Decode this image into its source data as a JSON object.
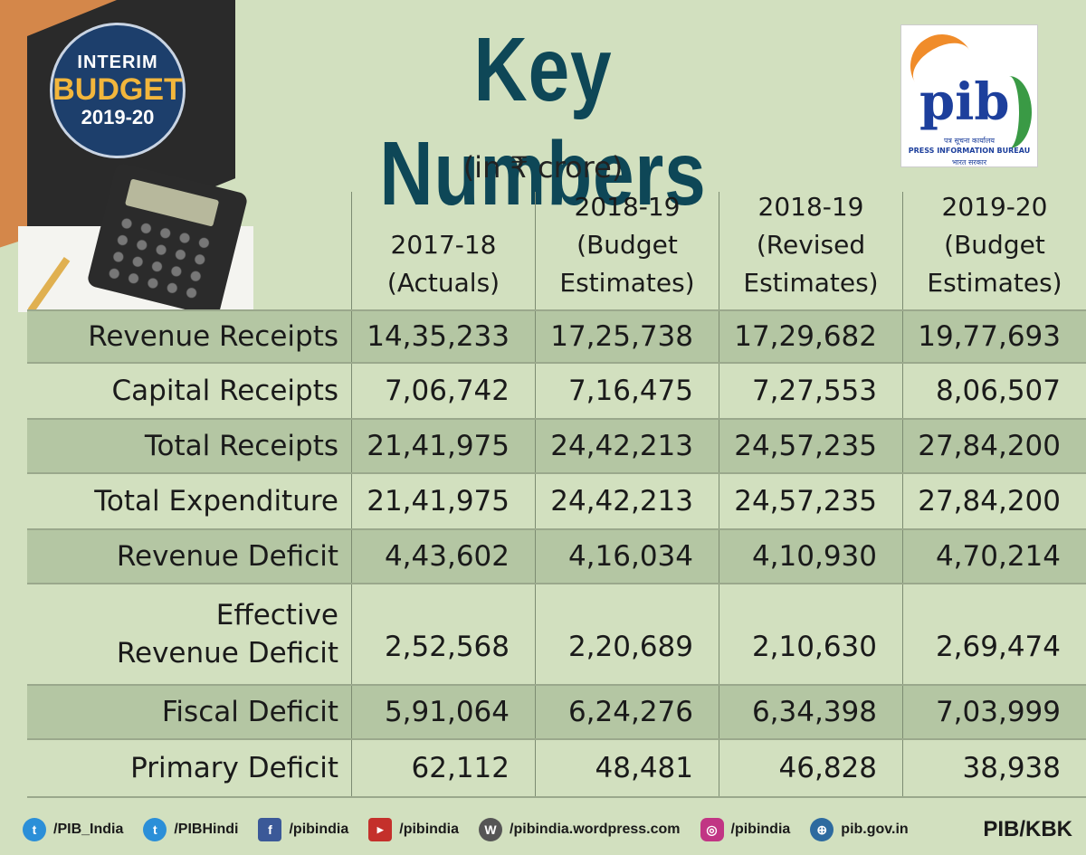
{
  "badge": {
    "line1": "INTERIM",
    "line2": "BUDGET",
    "line3": "2019-20"
  },
  "title": "Key Numbers",
  "unit": "(in ₹ crore)",
  "logo": {
    "name": "pib",
    "line1": "पत्र सूचना कार्यालय",
    "line2": "PRESS INFORMATION BUREAU",
    "line3": "भारत सरकार"
  },
  "columns": [
    {
      "line1": "",
      "line2": "2017-18",
      "line3": "(Actuals)"
    },
    {
      "line1": "2018-19",
      "line2": "(Budget",
      "line3": "Estimates)"
    },
    {
      "line1": "2018-19",
      "line2": "(Revised",
      "line3": "Estimates)"
    },
    {
      "line1": "2019-20",
      "line2": "(Budget",
      "line3": "Estimates)"
    }
  ],
  "rows": [
    {
      "label": "Revenue Receipts",
      "values": [
        "14,35,233",
        "17,25,738",
        "17,29,682",
        "19,77,693"
      ]
    },
    {
      "label": "Capital Receipts",
      "values": [
        "7,06,742",
        "7,16,475",
        "7,27,553",
        "8,06,507"
      ]
    },
    {
      "label": "Total Receipts",
      "values": [
        "21,41,975",
        "24,42,213",
        "24,57,235",
        "27,84,200"
      ]
    },
    {
      "label": "Total Expenditure",
      "values": [
        "21,41,975",
        "24,42,213",
        "24,57,235",
        "27,84,200"
      ]
    },
    {
      "label": "Revenue Deficit",
      "values": [
        "4,43,602",
        "4,16,034",
        "4,10,930",
        "4,70,214"
      ]
    },
    {
      "label_line1": "Effective",
      "label_line2": "Revenue Deficit",
      "values": [
        "2,52,568",
        "2,20,689",
        "2,10,630",
        "2,69,474"
      ]
    },
    {
      "label": "Fiscal Deficit",
      "values": [
        "5,91,064",
        "6,24,276",
        "6,34,398",
        "7,03,999"
      ]
    },
    {
      "label": "Primary Deficit",
      "values": [
        "62,112",
        "48,481",
        "46,828",
        "38,938"
      ]
    }
  ],
  "footer": {
    "items": [
      "/PIB_India",
      "/PIBHindi",
      "/pibindia",
      "/pibindia",
      "/pibindia.wordpress.com",
      "/pibindia",
      "pib.gov.in"
    ],
    "brand": "PIB/KBK"
  }
}
